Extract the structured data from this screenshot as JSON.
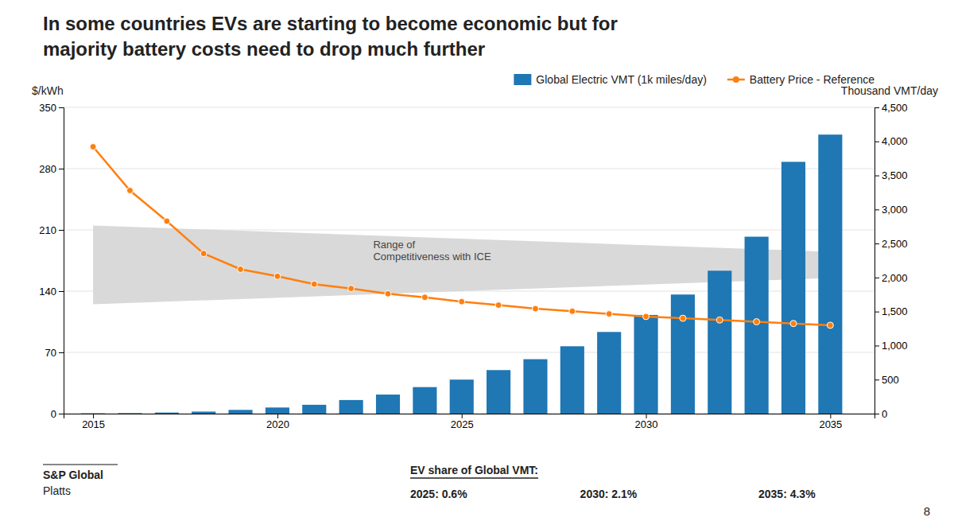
{
  "chart_data": {
    "type": "bar",
    "title": [
      "In some countries EVs are starting to become economic but for",
      "majority battery costs need to drop much further"
    ],
    "x": [
      2015,
      2016,
      2017,
      2018,
      2019,
      2020,
      2021,
      2022,
      2023,
      2024,
      2025,
      2026,
      2027,
      2028,
      2029,
      2030,
      2031,
      2032,
      2033,
      2034,
      2035
    ],
    "xlim": [
      2014.2,
      2036.2
    ],
    "xticks": [
      2015,
      2020,
      2025,
      2030,
      2035
    ],
    "ylim": [
      0,
      350
    ],
    "yticks": [
      0,
      70,
      140,
      210,
      280,
      350
    ],
    "y2lim": [
      0,
      4500
    ],
    "y2ticks": [
      0,
      500,
      {
        "value": 1000,
        "label": "1,000"
      },
      {
        "value": 1500,
        "label": "1,500"
      },
      {
        "value": 2000,
        "label": "2,000"
      },
      {
        "value": 2500,
        "label": "2,500"
      },
      {
        "value": 3000,
        "label": "3,000"
      },
      {
        "value": 3500,
        "label": "3,500"
      },
      {
        "value": 4000,
        "label": "4,000"
      },
      {
        "value": 4500,
        "label": "4,500"
      }
    ],
    "y_label": "$/kWh",
    "y2_label": "Thousand VMT/day",
    "series": [
      {
        "name": "Global Electric VMT (1k miles/day)",
        "type": "bar",
        "axis": "y2",
        "values": [
          5,
          8,
          16,
          30,
          55,
          90,
          130,
          200,
          280,
          390,
          500,
          640,
          800,
          990,
          1200,
          1450,
          1750,
          2100,
          2600,
          3700,
          4100
        ]
      },
      {
        "name": "Battery Price - Reference",
        "type": "line",
        "marker": "circle",
        "values": [
          305,
          255,
          220,
          183,
          165,
          157,
          148,
          143,
          137,
          133,
          128,
          124,
          120,
          117,
          114,
          111,
          109,
          107,
          105,
          103,
          101
        ]
      }
    ],
    "band": {
      "label": [
        "Range of",
        "Competitiveness with ICE"
      ],
      "x": [
        2015,
        2035,
        2035,
        2015
      ],
      "y": [
        215,
        185,
        155,
        125
      ]
    },
    "grid": true,
    "legend": "top-right",
    "annotations": {
      "title": "EV share of Global VMT:",
      "items": [
        "2025: 0.6%",
        "2030: 2.1%",
        "2035: 4.3%"
      ]
    },
    "source": [
      "S&P Global",
      "Platts"
    ],
    "page": "8"
  }
}
